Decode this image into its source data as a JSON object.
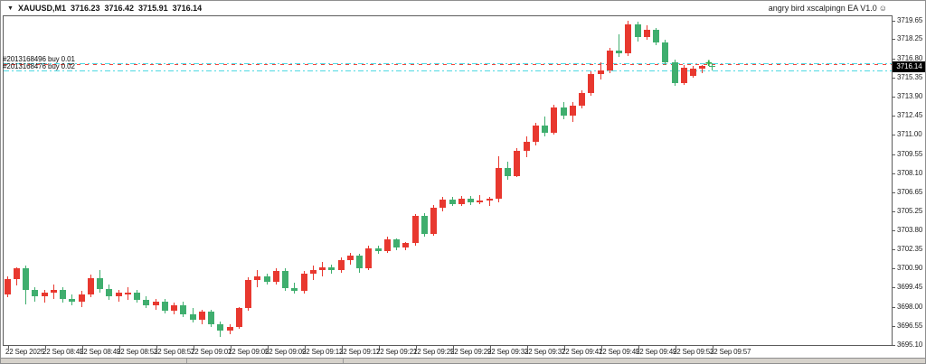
{
  "header": {
    "dropdown_icon": "▼",
    "symbol": "XAUUSD,M1",
    "open": "3716.23",
    "high": "3716.42",
    "low": "3715.91",
    "close": "3716.14",
    "ea_name": "angry bird xscalpingn EA V1.0",
    "ea_smiley": "☺"
  },
  "orders": [
    {
      "label": "#2013168496 buy 0.01",
      "price": 3716.42
    },
    {
      "label": "#2013168476 buy 0.02",
      "price": 3715.91
    }
  ],
  "lines": [
    {
      "name": "buy-order-line-1",
      "price": 3716.42,
      "style": "dashdot",
      "color": "#4fd9e3"
    },
    {
      "name": "ask-price-line",
      "price": 3716.38,
      "style": "dash",
      "color": "#f4443a"
    },
    {
      "name": "buy-order-line-2",
      "price": 3715.91,
      "style": "dashdot",
      "color": "#4fd9e3"
    }
  ],
  "marker": {
    "glyph": "✚",
    "price": 3716.3,
    "color": "#2fae4e"
  },
  "price_axis": {
    "current": "3716.14",
    "labels": [
      "3719.65",
      "3718.25",
      "3716.80",
      "3715.35",
      "3713.90",
      "3712.45",
      "3711.00",
      "3709.55",
      "3708.10",
      "3706.65",
      "3705.25",
      "3703.80",
      "3702.35",
      "3700.90",
      "3699.45",
      "3698.00",
      "3696.55",
      "3695.10"
    ]
  },
  "time_axis": {
    "labels": [
      "22 Sep 2025",
      "22 Sep 08:45",
      "22 Sep 08:49",
      "22 Sep 08:53",
      "22 Sep 08:57",
      "22 Sep 09:01",
      "22 Sep 09:05",
      "22 Sep 09:09",
      "22 Sep 09:13",
      "22 Sep 09:17",
      "22 Sep 09:21",
      "22 Sep 09:25",
      "22 Sep 09:29",
      "22 Sep 09:33",
      "22 Sep 09:37",
      "22 Sep 09:41",
      "22 Sep 09:45",
      "22 Sep 09:49",
      "22 Sep 09:53",
      "22 Sep 09:57"
    ]
  },
  "chart_data": {
    "type": "candlestick",
    "symbol": "XAUUSD",
    "period": "M1",
    "title": "XAUUSD,M1",
    "ylim": [
      3695.1,
      3719.65
    ],
    "grid": false,
    "up_color": "#e8382f",
    "down_color": "#3fae6e",
    "candles": [
      {
        "t": "08:41",
        "o": 3698.9,
        "h": 3700.3,
        "l": 3698.7,
        "c": 3700.1
      },
      {
        "t": "08:42",
        "o": 3700.1,
        "h": 3701.0,
        "l": 3699.6,
        "c": 3700.9
      },
      {
        "t": "08:43",
        "o": 3700.9,
        "h": 3701.1,
        "l": 3698.2,
        "c": 3699.3
      },
      {
        "t": "08:44",
        "o": 3699.3,
        "h": 3699.5,
        "l": 3698.4,
        "c": 3698.8
      },
      {
        "t": "08:45",
        "o": 3698.8,
        "h": 3699.3,
        "l": 3698.3,
        "c": 3699.1
      },
      {
        "t": "08:46",
        "o": 3699.1,
        "h": 3699.7,
        "l": 3698.6,
        "c": 3699.3
      },
      {
        "t": "08:47",
        "o": 3699.3,
        "h": 3699.5,
        "l": 3698.3,
        "c": 3698.6
      },
      {
        "t": "08:48",
        "o": 3698.6,
        "h": 3698.9,
        "l": 3698.1,
        "c": 3698.35
      },
      {
        "t": "08:49",
        "o": 3698.35,
        "h": 3699.2,
        "l": 3698.0,
        "c": 3698.95
      },
      {
        "t": "08:50",
        "o": 3698.95,
        "h": 3700.4,
        "l": 3698.7,
        "c": 3700.15
      },
      {
        "t": "08:51",
        "o": 3700.15,
        "h": 3700.8,
        "l": 3699.1,
        "c": 3699.35
      },
      {
        "t": "08:52",
        "o": 3699.35,
        "h": 3699.7,
        "l": 3698.5,
        "c": 3698.8
      },
      {
        "t": "08:53",
        "o": 3698.8,
        "h": 3699.3,
        "l": 3698.4,
        "c": 3699.1
      },
      {
        "t": "08:54",
        "o": 3698.9,
        "h": 3699.5,
        "l": 3698.5,
        "c": 3699.1
      },
      {
        "t": "08:55",
        "o": 3699.1,
        "h": 3699.3,
        "l": 3698.3,
        "c": 3698.5
      },
      {
        "t": "08:56",
        "o": 3698.5,
        "h": 3698.8,
        "l": 3697.9,
        "c": 3698.1
      },
      {
        "t": "08:57",
        "o": 3698.1,
        "h": 3698.6,
        "l": 3697.8,
        "c": 3698.4
      },
      {
        "t": "08:58",
        "o": 3698.4,
        "h": 3698.6,
        "l": 3697.5,
        "c": 3697.7
      },
      {
        "t": "08:59",
        "o": 3697.7,
        "h": 3698.3,
        "l": 3697.4,
        "c": 3698.1
      },
      {
        "t": "09:00",
        "o": 3698.1,
        "h": 3698.4,
        "l": 3697.2,
        "c": 3697.4
      },
      {
        "t": "09:01",
        "o": 3697.4,
        "h": 3697.9,
        "l": 3696.8,
        "c": 3697.0
      },
      {
        "t": "09:02",
        "o": 3697.0,
        "h": 3697.8,
        "l": 3696.7,
        "c": 3697.6
      },
      {
        "t": "09:03",
        "o": 3697.6,
        "h": 3697.8,
        "l": 3696.5,
        "c": 3696.7
      },
      {
        "t": "09:04",
        "o": 3696.7,
        "h": 3696.9,
        "l": 3695.7,
        "c": 3696.2
      },
      {
        "t": "09:05",
        "o": 3696.2,
        "h": 3696.7,
        "l": 3695.9,
        "c": 3696.5
      },
      {
        "t": "09:06",
        "o": 3696.5,
        "h": 3698.0,
        "l": 3696.3,
        "c": 3697.9
      },
      {
        "t": "09:07",
        "o": 3697.9,
        "h": 3700.2,
        "l": 3697.7,
        "c": 3700.0
      },
      {
        "t": "09:08",
        "o": 3700.0,
        "h": 3700.8,
        "l": 3699.5,
        "c": 3700.3
      },
      {
        "t": "09:09",
        "o": 3700.3,
        "h": 3700.5,
        "l": 3699.7,
        "c": 3699.9
      },
      {
        "t": "09:10",
        "o": 3699.9,
        "h": 3700.9,
        "l": 3699.7,
        "c": 3700.7
      },
      {
        "t": "09:11",
        "o": 3700.7,
        "h": 3700.9,
        "l": 3699.2,
        "c": 3699.4
      },
      {
        "t": "09:12",
        "o": 3699.4,
        "h": 3699.8,
        "l": 3699.0,
        "c": 3699.2
      },
      {
        "t": "09:13",
        "o": 3699.2,
        "h": 3700.7,
        "l": 3699.0,
        "c": 3700.5
      },
      {
        "t": "09:14",
        "o": 3700.5,
        "h": 3701.1,
        "l": 3700.0,
        "c": 3700.8
      },
      {
        "t": "09:15",
        "o": 3700.8,
        "h": 3701.4,
        "l": 3700.3,
        "c": 3701.0
      },
      {
        "t": "09:16",
        "o": 3701.0,
        "h": 3701.2,
        "l": 3700.5,
        "c": 3700.75
      },
      {
        "t": "09:17",
        "o": 3700.75,
        "h": 3701.7,
        "l": 3700.6,
        "c": 3701.5
      },
      {
        "t": "09:18",
        "o": 3701.5,
        "h": 3702.1,
        "l": 3701.2,
        "c": 3701.9
      },
      {
        "t": "09:19",
        "o": 3701.9,
        "h": 3702.0,
        "l": 3700.6,
        "c": 3700.9
      },
      {
        "t": "09:20",
        "o": 3700.9,
        "h": 3702.6,
        "l": 3700.8,
        "c": 3702.4
      },
      {
        "t": "09:21",
        "o": 3702.4,
        "h": 3702.6,
        "l": 3702.0,
        "c": 3702.2
      },
      {
        "t": "09:22",
        "o": 3702.2,
        "h": 3703.3,
        "l": 3702.1,
        "c": 3703.1
      },
      {
        "t": "09:23",
        "o": 3703.1,
        "h": 3703.2,
        "l": 3702.3,
        "c": 3702.5
      },
      {
        "t": "09:24",
        "o": 3702.5,
        "h": 3702.9,
        "l": 3702.3,
        "c": 3702.8
      },
      {
        "t": "09:25",
        "o": 3702.8,
        "h": 3705.0,
        "l": 3702.6,
        "c": 3704.85
      },
      {
        "t": "09:26",
        "o": 3704.85,
        "h": 3705.1,
        "l": 3703.3,
        "c": 3703.5
      },
      {
        "t": "09:27",
        "o": 3703.5,
        "h": 3705.7,
        "l": 3703.4,
        "c": 3705.5
      },
      {
        "t": "09:28",
        "o": 3705.5,
        "h": 3706.3,
        "l": 3705.2,
        "c": 3706.1
      },
      {
        "t": "09:29",
        "o": 3706.1,
        "h": 3706.3,
        "l": 3705.6,
        "c": 3705.8
      },
      {
        "t": "09:30",
        "o": 3705.8,
        "h": 3706.4,
        "l": 3705.6,
        "c": 3706.2
      },
      {
        "t": "09:31",
        "o": 3706.2,
        "h": 3706.4,
        "l": 3705.7,
        "c": 3705.9
      },
      {
        "t": "09:32",
        "o": 3705.9,
        "h": 3706.45,
        "l": 3705.8,
        "c": 3706.05
      },
      {
        "t": "09:33",
        "o": 3706.05,
        "h": 3706.3,
        "l": 3705.6,
        "c": 3706.2
      },
      {
        "t": "09:34",
        "o": 3706.2,
        "h": 3709.4,
        "l": 3705.9,
        "c": 3708.5
      },
      {
        "t": "09:35",
        "o": 3708.5,
        "h": 3709.0,
        "l": 3707.6,
        "c": 3707.9
      },
      {
        "t": "09:36",
        "o": 3707.9,
        "h": 3710.0,
        "l": 3707.8,
        "c": 3709.8
      },
      {
        "t": "09:37",
        "o": 3709.8,
        "h": 3710.9,
        "l": 3709.3,
        "c": 3710.5
      },
      {
        "t": "09:38",
        "o": 3710.5,
        "h": 3711.9,
        "l": 3710.2,
        "c": 3711.7
      },
      {
        "t": "09:39",
        "o": 3711.7,
        "h": 3712.4,
        "l": 3710.9,
        "c": 3711.2
      },
      {
        "t": "09:40",
        "o": 3711.2,
        "h": 3713.3,
        "l": 3711.0,
        "c": 3713.1
      },
      {
        "t": "09:41",
        "o": 3713.1,
        "h": 3713.5,
        "l": 3712.2,
        "c": 3712.5
      },
      {
        "t": "09:42",
        "o": 3712.5,
        "h": 3713.5,
        "l": 3712.0,
        "c": 3713.2
      },
      {
        "t": "09:43",
        "o": 3713.2,
        "h": 3714.4,
        "l": 3713.0,
        "c": 3714.2
      },
      {
        "t": "09:44",
        "o": 3714.2,
        "h": 3715.8,
        "l": 3714.0,
        "c": 3715.6
      },
      {
        "t": "09:45",
        "o": 3715.6,
        "h": 3716.5,
        "l": 3715.2,
        "c": 3715.9
      },
      {
        "t": "09:46",
        "o": 3715.9,
        "h": 3717.6,
        "l": 3715.7,
        "c": 3717.4
      },
      {
        "t": "09:47",
        "o": 3717.4,
        "h": 3718.6,
        "l": 3716.9,
        "c": 3717.2
      },
      {
        "t": "09:48",
        "o": 3717.2,
        "h": 3719.65,
        "l": 3717.0,
        "c": 3719.35
      },
      {
        "t": "09:49",
        "o": 3719.35,
        "h": 3719.6,
        "l": 3718.1,
        "c": 3718.4
      },
      {
        "t": "09:50",
        "o": 3718.4,
        "h": 3719.3,
        "l": 3718.2,
        "c": 3719.0
      },
      {
        "t": "09:51",
        "o": 3719.0,
        "h": 3719.1,
        "l": 3717.8,
        "c": 3718.0
      },
      {
        "t": "09:52",
        "o": 3718.0,
        "h": 3718.2,
        "l": 3716.3,
        "c": 3716.5
      },
      {
        "t": "09:53",
        "o": 3716.5,
        "h": 3716.7,
        "l": 3714.7,
        "c": 3714.9
      },
      {
        "t": "09:54",
        "o": 3714.9,
        "h": 3716.3,
        "l": 3714.8,
        "c": 3716.1
      },
      {
        "t": "09:55",
        "o": 3715.5,
        "h": 3716.25,
        "l": 3715.35,
        "c": 3716.05
      },
      {
        "t": "09:56",
        "o": 3716.05,
        "h": 3716.3,
        "l": 3715.7,
        "c": 3716.2
      },
      {
        "t": "09:57",
        "o": 3716.23,
        "h": 3716.42,
        "l": 3715.91,
        "c": 3716.14
      }
    ]
  },
  "colors": {
    "background": "#ffffff",
    "frame": "#5c5c5c",
    "axis_text": "#1f1f1f",
    "current_price_bg": "#000000",
    "current_price_text": "#ffffff",
    "order_line": "#4fd9e3",
    "ask_line": "#f4443a",
    "window_strip": "#d6d2cb"
  }
}
